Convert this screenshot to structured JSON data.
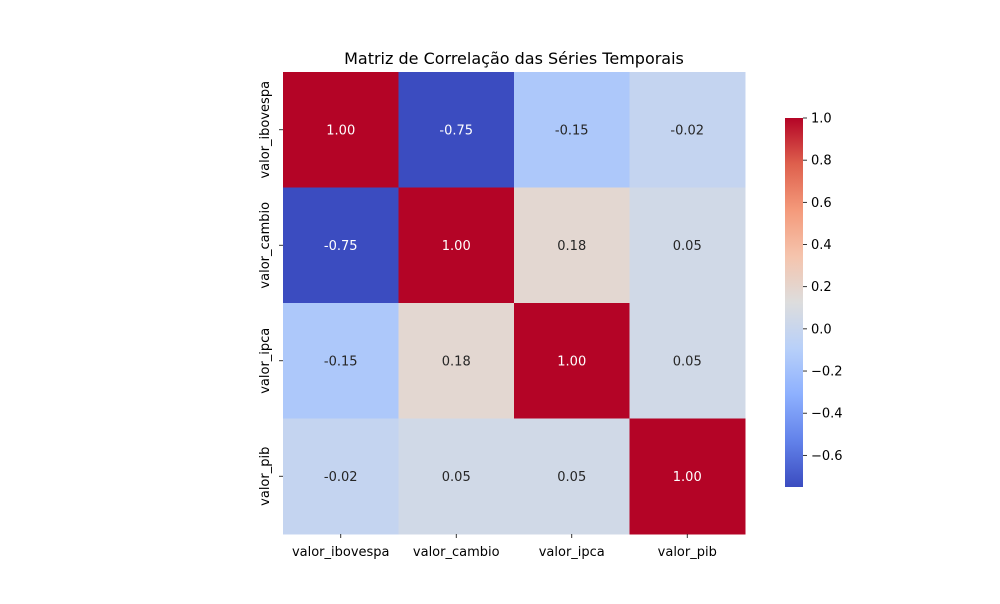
{
  "chart_data": {
    "type": "heatmap",
    "title": "Matriz de Correlação das Séries Temporais",
    "row_labels": [
      "valor_ibovespa",
      "valor_cambio",
      "valor_ipca",
      "valor_pib"
    ],
    "col_labels": [
      "valor_ibovespa",
      "valor_cambio",
      "valor_ipca",
      "valor_pib"
    ],
    "values": [
      [
        1.0,
        -0.75,
        -0.15,
        -0.02
      ],
      [
        -0.75,
        1.0,
        0.18,
        0.05
      ],
      [
        -0.15,
        0.18,
        1.0,
        0.05
      ],
      [
        -0.02,
        0.05,
        0.05,
        1.0
      ]
    ],
    "value_labels": [
      [
        "1.00",
        "-0.75",
        "-0.15",
        "-0.02"
      ],
      [
        "-0.75",
        "1.00",
        "0.18",
        "0.05"
      ],
      [
        "-0.15",
        "0.18",
        "1.00",
        "0.05"
      ],
      [
        "-0.02",
        "0.05",
        "0.05",
        "1.00"
      ]
    ],
    "colormap": "coolwarm",
    "colorbar": {
      "range": [
        -0.75,
        1.0
      ],
      "ticks": [
        -0.6,
        -0.4,
        -0.2,
        0.0,
        0.2,
        0.4,
        0.6,
        0.8,
        1.0
      ],
      "tick_labels": [
        "−0.6",
        "−0.4",
        "−0.2",
        "0.0",
        "0.2",
        "0.4",
        "0.6",
        "0.8",
        "1.0"
      ],
      "position": "right"
    }
  }
}
